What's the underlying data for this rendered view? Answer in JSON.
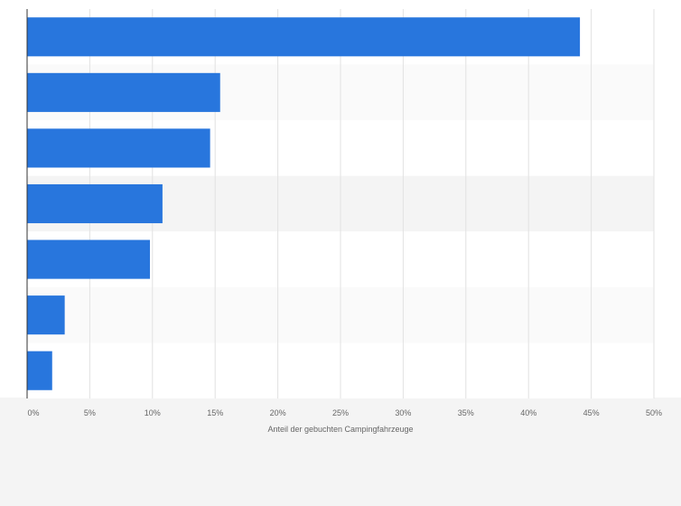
{
  "chart_data": {
    "type": "bar",
    "orientation": "horizontal",
    "categories": [
      "",
      "",
      "",
      "",
      "",
      "",
      ""
    ],
    "values": [
      44.1,
      15.4,
      14.6,
      10.8,
      9.8,
      3.0,
      2.0
    ],
    "xlabel": "Anteil der gebuchten Campingfahrzeuge",
    "ylabel": "",
    "xlim": [
      0,
      50
    ],
    "ticks": [
      0,
      5,
      10,
      15,
      20,
      25,
      30,
      35,
      40,
      45,
      50
    ],
    "tick_labels": [
      "0%",
      "5%",
      "10%",
      "15%",
      "20%",
      "25%",
      "30%",
      "35%",
      "40%",
      "45%",
      "50%"
    ],
    "grid": true,
    "legend": "none",
    "bar_color": "#2876dd"
  }
}
